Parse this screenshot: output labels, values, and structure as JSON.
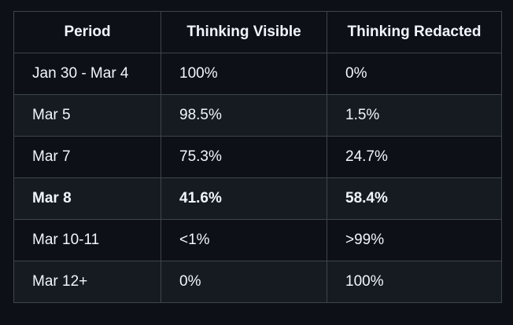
{
  "colors": {
    "page_bg": "#0d1117",
    "row_alt_bg": "#161b22",
    "border": "#3d444d",
    "text": "#f0f6fc"
  },
  "chart_data": {
    "type": "table",
    "columns": [
      "Period",
      "Thinking Visible",
      "Thinking Redacted"
    ],
    "rows": [
      {
        "period": "Jan 30 - Mar 4",
        "thinking_visible": "100%",
        "thinking_redacted": "0%",
        "bold": false
      },
      {
        "period": "Mar 5",
        "thinking_visible": "98.5%",
        "thinking_redacted": "1.5%",
        "bold": false
      },
      {
        "period": "Mar 7",
        "thinking_visible": "75.3%",
        "thinking_redacted": "24.7%",
        "bold": false
      },
      {
        "period": "Mar 8",
        "thinking_visible": "41.6%",
        "thinking_redacted": "58.4%",
        "bold": true
      },
      {
        "period": "Mar 10-11",
        "thinking_visible": "<1%",
        "thinking_redacted": ">99%",
        "bold": false
      },
      {
        "period": "Mar 12+",
        "thinking_visible": "0%",
        "thinking_redacted": "100%",
        "bold": false
      }
    ]
  }
}
